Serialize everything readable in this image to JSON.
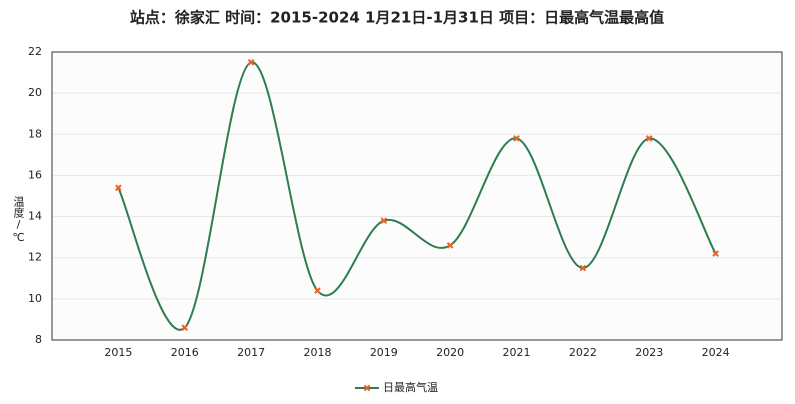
{
  "chart_data": {
    "type": "line",
    "title": "站点：徐家汇 时间：2015-2024  1月21日-1月31日 项目：日最高气温最高值",
    "y_label": "温度/℃",
    "categories": [
      "2015",
      "2016",
      "2017",
      "2018",
      "2019",
      "2020",
      "2021",
      "2022",
      "2023",
      "2024"
    ],
    "series": [
      {
        "name": "日最高气温",
        "color": "#2e7d4f",
        "marker_color": "#e8622a",
        "values": [
          15.4,
          8.6,
          21.5,
          10.4,
          13.8,
          12.6,
          17.8,
          11.5,
          17.8,
          12.2
        ]
      }
    ],
    "ylim": [
      8,
      22
    ],
    "yticks": [
      8,
      10,
      12,
      14,
      16,
      18,
      20,
      22
    ],
    "grid": true,
    "smooth": true,
    "legend": "bottom"
  }
}
